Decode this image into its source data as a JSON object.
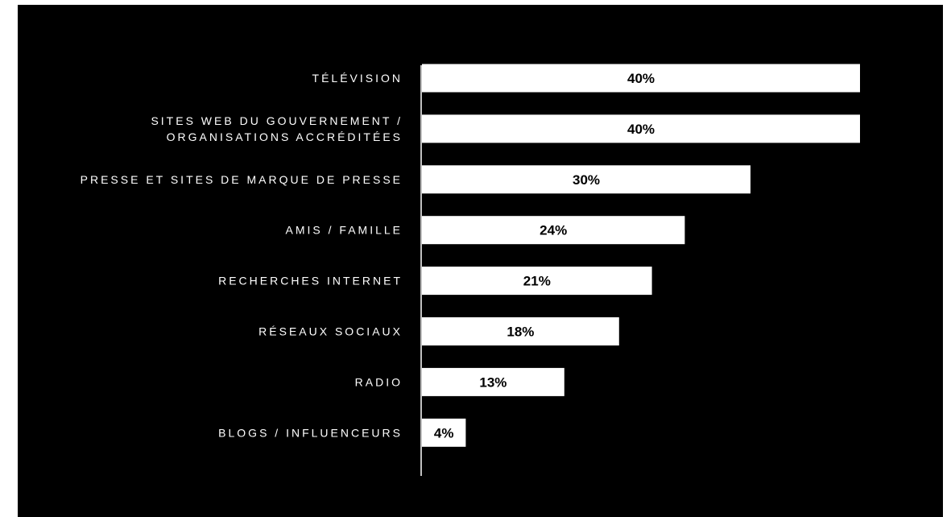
{
  "chart_data": {
    "type": "bar",
    "orientation": "horizontal",
    "categories": [
      [
        "TÉLÉVISION"
      ],
      [
        "SITES WEB DU GOUVERNEMENT /",
        "ORGANISATIONS ACCRÉDITÉES"
      ],
      [
        "PRESSE ET SITES DE MARQUE DE PRESSE"
      ],
      [
        "AMIS / FAMILLE"
      ],
      [
        "RECHERCHES INTERNET"
      ],
      [
        "RÉSEAUX SOCIAUX"
      ],
      [
        "RADIO"
      ],
      [
        "BLOGS / INFLUENCEURS"
      ]
    ],
    "values": [
      40,
      40,
      30,
      24,
      21,
      18,
      13,
      4
    ],
    "value_labels": [
      "40%",
      "40%",
      "30%",
      "24%",
      "21%",
      "18%",
      "13%",
      "4%"
    ],
    "unit": "%",
    "title": "",
    "xlabel": "",
    "ylabel": "",
    "grid": false,
    "legend": "none",
    "colors": {
      "background": "#000000",
      "bar": "#ffffff",
      "value_text": "#000000",
      "category_text": "#ffffff",
      "axis": "#ffffff"
    }
  }
}
